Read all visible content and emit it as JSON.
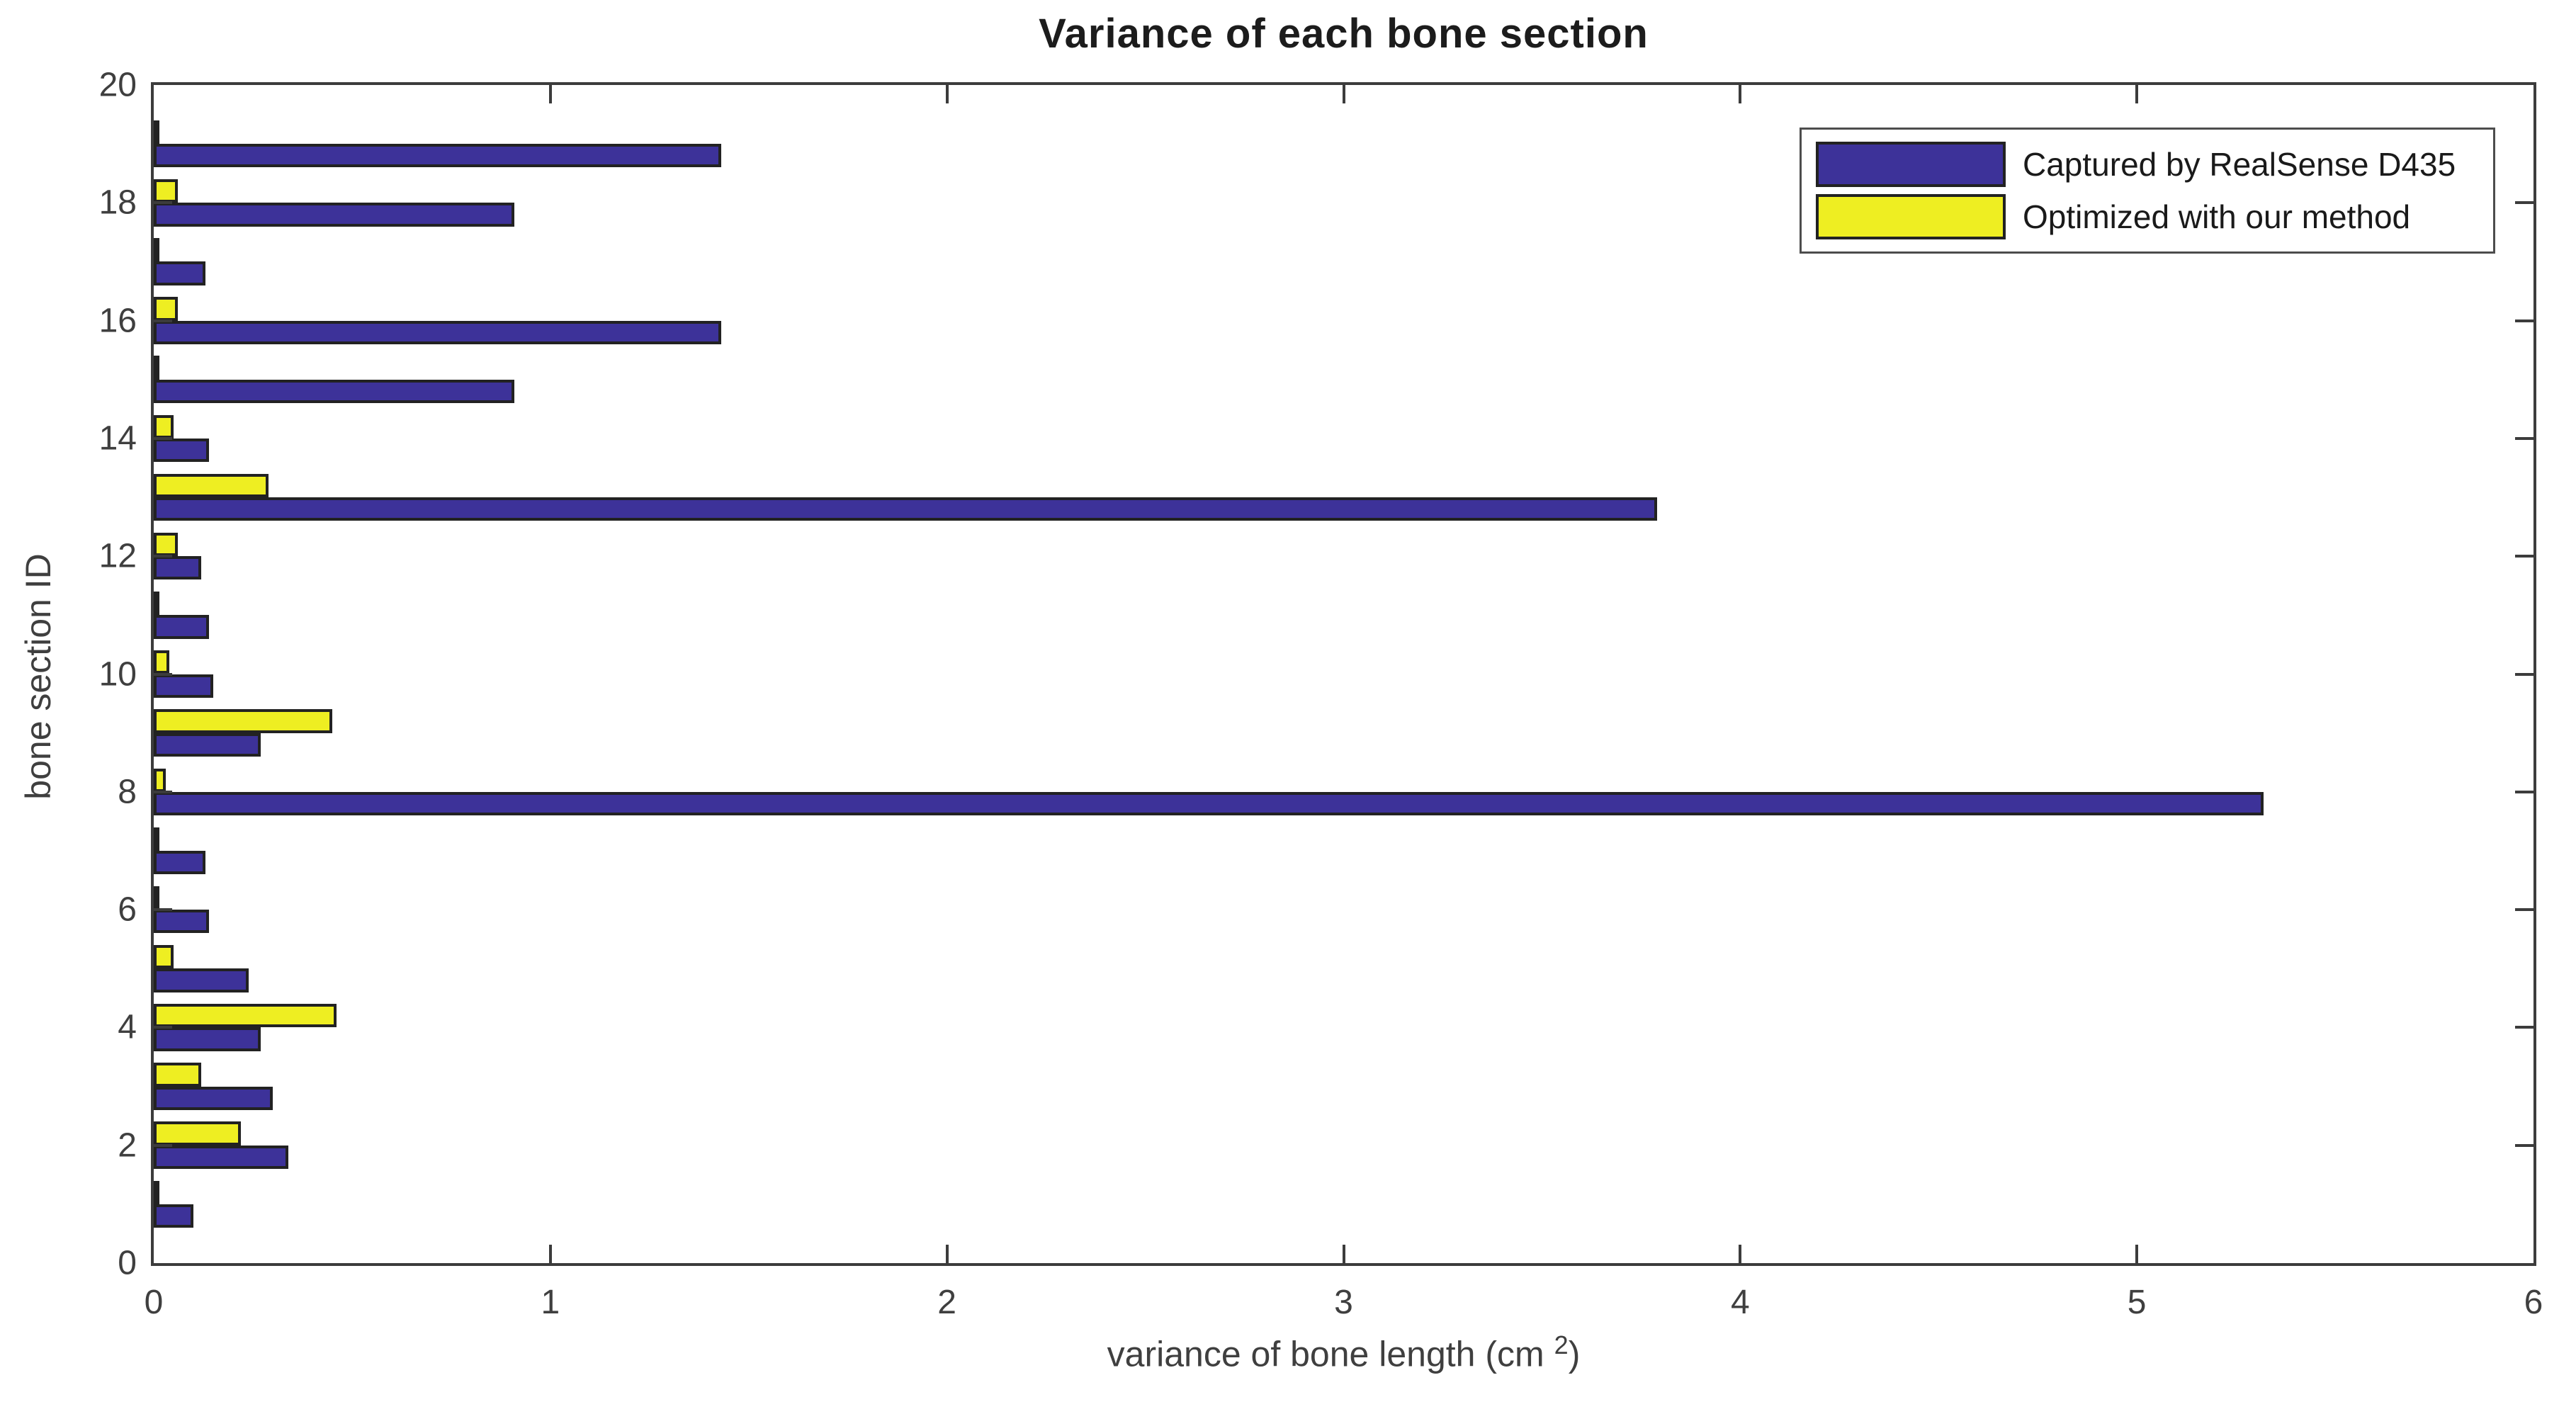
{
  "title": "Variance of each bone section",
  "axes": {
    "xlabel_prefix": "variance of bone length (cm",
    "xlabel_sup": "2",
    "xlabel_suffix": ")",
    "ylabel": "bone section ID",
    "x_ticks": [
      0,
      1,
      2,
      3,
      4,
      5,
      6
    ],
    "y_ticks": [
      0,
      2,
      4,
      6,
      8,
      10,
      12,
      14,
      16,
      18,
      20
    ],
    "xlim": [
      0,
      6
    ],
    "ylim": [
      0,
      20
    ],
    "grid": false
  },
  "legend": {
    "position": "top-right",
    "items": [
      {
        "label": "Captured by RealSense D435",
        "color": "#3d3299"
      },
      {
        "label": "Optimized with our method",
        "color": "#eeee22"
      }
    ]
  },
  "colors": {
    "captured_fill": "#3d3299",
    "optimized_fill": "#eeee22",
    "bar_edge": "#222222",
    "axis": "#3c3c3c",
    "text": "#3f3f3f"
  },
  "chart_data": {
    "type": "bar",
    "orientation": "horizontal",
    "title": "Variance of each bone section",
    "xlabel": "variance of bone length (cm 2)",
    "ylabel": "bone section ID",
    "xlim": [
      0,
      6
    ],
    "ylim": [
      0,
      20
    ],
    "grid": false,
    "legend_position": "top-right",
    "categories": [
      1,
      2,
      3,
      4,
      5,
      6,
      7,
      8,
      9,
      10,
      11,
      12,
      13,
      14,
      15,
      16,
      17,
      18,
      19
    ],
    "series": [
      {
        "name": "Captured by RealSense D435",
        "color": "#3d3299",
        "values": [
          0.1,
          0.34,
          0.3,
          0.27,
          0.24,
          0.14,
          0.13,
          5.32,
          0.27,
          0.15,
          0.14,
          0.12,
          3.79,
          0.14,
          0.91,
          1.43,
          0.13,
          0.91,
          1.43
        ]
      },
      {
        "name": "Optimized with our method",
        "color": "#eeee22",
        "values": [
          0.01,
          0.22,
          0.12,
          0.46,
          0.05,
          0.01,
          0.01,
          0.03,
          0.45,
          0.04,
          0.01,
          0.06,
          0.29,
          0.05,
          0.01,
          0.06,
          0.01,
          0.06,
          0.01
        ]
      }
    ]
  }
}
